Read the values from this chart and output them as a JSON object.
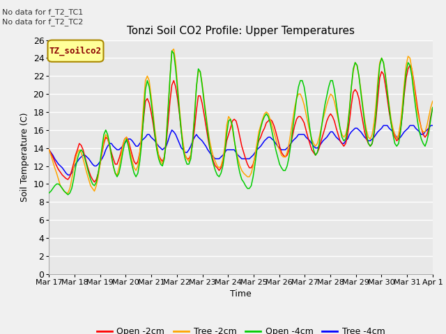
{
  "title": "Tonzi Soil CO2 Profile: Upper Temperatures",
  "xlabel": "Time",
  "ylabel": "Soil Temperature (C)",
  "annotations": [
    "No data for f_T2_TC1",
    "No data for f_T2_TC2"
  ],
  "legend_label": "TZ_soilco2",
  "ylim": [
    0,
    26
  ],
  "yticks": [
    0,
    2,
    4,
    6,
    8,
    10,
    12,
    14,
    16,
    18,
    20,
    22,
    24,
    26
  ],
  "x_tick_labels": [
    "Mar 17",
    "Mar 18",
    "Mar 19",
    "Mar 20",
    "Mar 21",
    "Mar 22",
    "Mar 23",
    "Mar 24",
    "Mar 25",
    "Mar 26",
    "Mar 27",
    "Mar 28",
    "Mar 29",
    "Mar 30",
    "Mar 31",
    "Apr 1"
  ],
  "series_labels": [
    "Open -2cm",
    "Tree -2cm",
    "Open -4cm",
    "Tree -4cm"
  ],
  "series_colors": [
    "#ff0000",
    "#ffa500",
    "#00cc00",
    "#0000ff"
  ],
  "plot_bg": "#e8e8e8",
  "fig_bg": "#f0f0f0",
  "grid_color": "#ffffff",
  "legend_box_facecolor": "#ffff99",
  "legend_box_edgecolor": "#aa8800",
  "open_2cm": [
    13.8,
    13.4,
    13.0,
    12.5,
    12.0,
    11.6,
    11.3,
    11.0,
    10.8,
    10.6,
    10.5,
    10.8,
    11.5,
    12.3,
    13.2,
    13.8,
    14.5,
    14.3,
    13.8,
    13.0,
    12.2,
    11.5,
    10.9,
    10.5,
    10.2,
    10.5,
    11.2,
    12.2,
    13.4,
    14.5,
    15.2,
    15.0,
    14.3,
    13.5,
    12.8,
    12.2,
    12.2,
    12.8,
    13.5,
    14.3,
    15.0,
    15.2,
    14.8,
    14.0,
    13.2,
    12.5,
    12.2,
    12.5,
    13.5,
    15.0,
    17.2,
    19.2,
    19.5,
    19.0,
    18.0,
    16.8,
    15.3,
    14.0,
    13.2,
    12.8,
    12.5,
    13.0,
    14.5,
    16.8,
    19.2,
    21.0,
    21.5,
    20.8,
    19.5,
    17.8,
    15.8,
    14.2,
    13.2,
    12.8,
    12.8,
    13.2,
    14.5,
    16.2,
    18.2,
    19.8,
    19.8,
    19.0,
    17.8,
    16.5,
    15.2,
    14.0,
    13.2,
    12.5,
    12.0,
    11.8,
    11.5,
    11.8,
    12.5,
    13.5,
    14.8,
    15.5,
    16.2,
    17.0,
    17.2,
    17.0,
    16.2,
    15.2,
    14.2,
    13.5,
    12.8,
    12.2,
    11.8,
    11.8,
    12.2,
    13.0,
    14.0,
    14.8,
    15.2,
    15.8,
    16.2,
    16.8,
    17.0,
    17.2,
    17.0,
    16.5,
    15.8,
    15.0,
    14.2,
    13.5,
    13.2,
    13.0,
    13.2,
    13.8,
    14.5,
    15.5,
    16.5,
    17.2,
    17.5,
    17.5,
    17.2,
    16.8,
    16.0,
    15.2,
    14.5,
    13.8,
    13.5,
    13.2,
    13.5,
    14.0,
    14.8,
    15.5,
    16.2,
    17.0,
    17.5,
    17.8,
    17.5,
    17.0,
    16.2,
    15.5,
    14.8,
    14.5,
    14.2,
    14.5,
    15.5,
    17.0,
    18.8,
    20.2,
    20.5,
    20.2,
    19.5,
    18.2,
    17.0,
    15.8,
    15.0,
    14.5,
    14.2,
    14.5,
    15.5,
    17.2,
    19.5,
    21.8,
    22.5,
    22.2,
    21.0,
    19.5,
    18.0,
    16.8,
    15.8,
    15.2,
    14.8,
    15.0,
    16.0,
    17.8,
    20.0,
    21.8,
    22.8,
    23.2,
    22.8,
    21.5,
    20.0,
    18.5,
    17.2,
    16.2,
    15.5,
    15.2,
    15.5,
    16.2,
    17.5,
    18.5
  ],
  "tree_2cm": [
    13.8,
    13.2,
    12.5,
    11.8,
    11.2,
    10.5,
    9.8,
    9.5,
    9.2,
    9.0,
    9.0,
    9.5,
    10.5,
    11.8,
    12.8,
    13.5,
    13.8,
    13.5,
    12.8,
    12.0,
    11.2,
    10.5,
    9.8,
    9.5,
    9.2,
    9.8,
    10.8,
    12.2,
    13.5,
    14.8,
    15.5,
    15.2,
    14.2,
    13.0,
    12.0,
    11.2,
    11.0,
    11.8,
    13.0,
    14.2,
    15.0,
    15.2,
    14.5,
    13.5,
    12.5,
    11.8,
    11.5,
    12.0,
    13.5,
    15.8,
    18.8,
    21.5,
    22.0,
    21.5,
    19.8,
    18.0,
    16.0,
    14.5,
    13.2,
    12.5,
    12.2,
    13.0,
    15.2,
    18.5,
    21.8,
    24.8,
    25.0,
    23.5,
    21.0,
    18.5,
    16.2,
    14.5,
    13.2,
    12.8,
    12.5,
    13.2,
    15.0,
    17.8,
    20.8,
    22.5,
    22.5,
    21.2,
    19.5,
    17.8,
    16.2,
    14.8,
    13.8,
    13.0,
    12.5,
    12.0,
    11.8,
    12.0,
    12.8,
    14.2,
    16.5,
    17.5,
    17.2,
    16.2,
    14.8,
    13.8,
    12.8,
    12.0,
    11.5,
    11.2,
    11.0,
    10.8,
    10.8,
    11.2,
    12.0,
    13.2,
    14.5,
    15.8,
    16.5,
    17.2,
    17.8,
    18.0,
    17.8,
    17.2,
    16.5,
    15.8,
    15.0,
    14.2,
    13.8,
    13.2,
    13.0,
    13.0,
    13.5,
    14.5,
    15.8,
    17.2,
    18.5,
    19.5,
    20.0,
    20.0,
    19.5,
    18.8,
    17.8,
    16.8,
    15.8,
    15.0,
    14.5,
    14.2,
    14.5,
    15.2,
    16.2,
    17.2,
    18.0,
    18.8,
    19.5,
    20.0,
    19.8,
    19.2,
    18.2,
    17.2,
    16.2,
    15.5,
    15.2,
    15.5,
    16.5,
    18.5,
    20.8,
    22.5,
    23.5,
    23.2,
    22.0,
    20.5,
    18.8,
    17.2,
    16.0,
    15.2,
    15.0,
    15.5,
    16.8,
    18.8,
    21.5,
    23.5,
    24.0,
    23.5,
    22.2,
    20.5,
    18.8,
    17.2,
    16.2,
    15.5,
    15.0,
    15.5,
    16.8,
    18.8,
    21.2,
    23.2,
    24.2,
    24.0,
    22.8,
    21.2,
    19.5,
    18.0,
    17.0,
    16.2,
    15.8,
    15.8,
    16.5,
    17.5,
    18.5,
    19.2
  ],
  "open_4cm": [
    9.0,
    9.2,
    9.5,
    9.8,
    10.0,
    10.0,
    9.8,
    9.5,
    9.2,
    9.0,
    8.8,
    9.0,
    9.5,
    10.5,
    11.8,
    12.8,
    13.5,
    13.8,
    13.5,
    12.8,
    12.0,
    11.2,
    10.5,
    10.0,
    9.8,
    10.2,
    11.2,
    12.5,
    14.0,
    15.5,
    16.0,
    15.5,
    14.5,
    13.2,
    12.0,
    11.2,
    10.8,
    11.2,
    12.2,
    13.5,
    14.5,
    15.0,
    14.2,
    13.0,
    12.0,
    11.2,
    10.8,
    11.2,
    12.5,
    14.5,
    17.5,
    20.5,
    21.5,
    20.8,
    19.2,
    17.5,
    15.5,
    13.8,
    12.8,
    12.2,
    12.0,
    12.8,
    14.8,
    18.2,
    21.8,
    24.8,
    24.5,
    22.8,
    20.5,
    18.0,
    15.8,
    13.8,
    12.8,
    12.2,
    12.2,
    12.8,
    14.8,
    17.5,
    20.8,
    22.8,
    22.5,
    21.0,
    19.2,
    17.5,
    15.8,
    14.2,
    13.0,
    12.2,
    11.5,
    11.0,
    10.8,
    11.2,
    12.0,
    13.5,
    15.5,
    17.0,
    17.2,
    16.5,
    15.0,
    13.5,
    12.2,
    11.2,
    10.5,
    10.2,
    9.8,
    9.5,
    9.5,
    9.8,
    10.8,
    12.2,
    13.8,
    15.2,
    16.2,
    17.0,
    17.5,
    17.8,
    17.5,
    16.8,
    15.8,
    14.8,
    13.8,
    13.0,
    12.2,
    11.8,
    11.5,
    11.5,
    12.0,
    13.0,
    14.5,
    16.2,
    17.8,
    19.5,
    20.8,
    21.5,
    21.5,
    20.8,
    19.5,
    17.8,
    16.2,
    14.8,
    13.8,
    13.2,
    13.5,
    14.5,
    16.0,
    17.5,
    18.8,
    19.8,
    20.8,
    21.5,
    21.5,
    20.5,
    19.0,
    17.5,
    16.2,
    15.2,
    14.8,
    15.0,
    16.2,
    18.2,
    20.8,
    22.8,
    23.5,
    23.2,
    22.0,
    20.2,
    18.5,
    16.8,
    15.5,
    14.5,
    14.2,
    14.5,
    15.8,
    17.8,
    20.8,
    23.2,
    24.0,
    23.5,
    22.0,
    20.2,
    18.5,
    16.8,
    15.5,
    14.5,
    14.2,
    14.5,
    15.8,
    17.8,
    20.5,
    22.5,
    23.5,
    23.2,
    22.0,
    20.2,
    18.5,
    17.0,
    15.8,
    15.0,
    14.5,
    14.2,
    14.8,
    15.8,
    17.2,
    18.5
  ],
  "tree_4cm": [
    13.8,
    13.5,
    13.2,
    12.8,
    12.5,
    12.2,
    12.0,
    11.8,
    11.5,
    11.2,
    11.0,
    11.0,
    11.2,
    11.8,
    12.2,
    12.5,
    12.8,
    13.0,
    13.2,
    13.2,
    13.0,
    12.8,
    12.5,
    12.2,
    12.0,
    12.0,
    12.2,
    12.5,
    12.8,
    13.2,
    13.8,
    14.2,
    14.5,
    14.5,
    14.2,
    14.0,
    13.8,
    13.8,
    14.0,
    14.2,
    14.5,
    14.8,
    15.0,
    15.0,
    14.8,
    14.5,
    14.2,
    14.2,
    14.5,
    14.8,
    15.0,
    15.2,
    15.5,
    15.5,
    15.2,
    15.0,
    14.8,
    14.5,
    14.2,
    14.0,
    13.8,
    14.0,
    14.2,
    14.8,
    15.5,
    16.0,
    15.8,
    15.5,
    15.0,
    14.5,
    14.0,
    13.8,
    13.5,
    13.5,
    13.8,
    14.2,
    14.8,
    15.2,
    15.5,
    15.2,
    15.0,
    14.8,
    14.5,
    14.2,
    13.8,
    13.5,
    13.2,
    13.0,
    12.8,
    12.8,
    12.8,
    13.0,
    13.2,
    13.5,
    13.8,
    13.8,
    13.8,
    13.8,
    13.8,
    13.5,
    13.2,
    13.0,
    12.8,
    12.8,
    12.8,
    12.8,
    12.8,
    13.0,
    13.2,
    13.5,
    13.8,
    14.0,
    14.2,
    14.5,
    14.8,
    15.0,
    15.2,
    15.2,
    15.0,
    14.8,
    14.5,
    14.2,
    14.0,
    13.8,
    13.8,
    13.8,
    14.0,
    14.2,
    14.5,
    14.8,
    15.0,
    15.2,
    15.5,
    15.5,
    15.5,
    15.5,
    15.2,
    15.0,
    14.8,
    14.5,
    14.2,
    14.0,
    14.0,
    14.2,
    14.5,
    14.8,
    15.0,
    15.2,
    15.5,
    15.8,
    15.8,
    15.5,
    15.2,
    15.0,
    14.8,
    14.5,
    14.5,
    14.8,
    15.0,
    15.5,
    15.8,
    16.0,
    16.2,
    16.2,
    16.0,
    15.8,
    15.5,
    15.2,
    15.0,
    14.8,
    14.8,
    15.0,
    15.2,
    15.5,
    15.8,
    16.0,
    16.2,
    16.5,
    16.5,
    16.5,
    16.2,
    16.0,
    15.8,
    15.5,
    15.2,
    15.0,
    15.2,
    15.5,
    15.8,
    16.0,
    16.2,
    16.5,
    16.5,
    16.5,
    16.2,
    16.0,
    15.8,
    15.5,
    15.5,
    15.8,
    16.0,
    16.2,
    16.5,
    16.5
  ]
}
